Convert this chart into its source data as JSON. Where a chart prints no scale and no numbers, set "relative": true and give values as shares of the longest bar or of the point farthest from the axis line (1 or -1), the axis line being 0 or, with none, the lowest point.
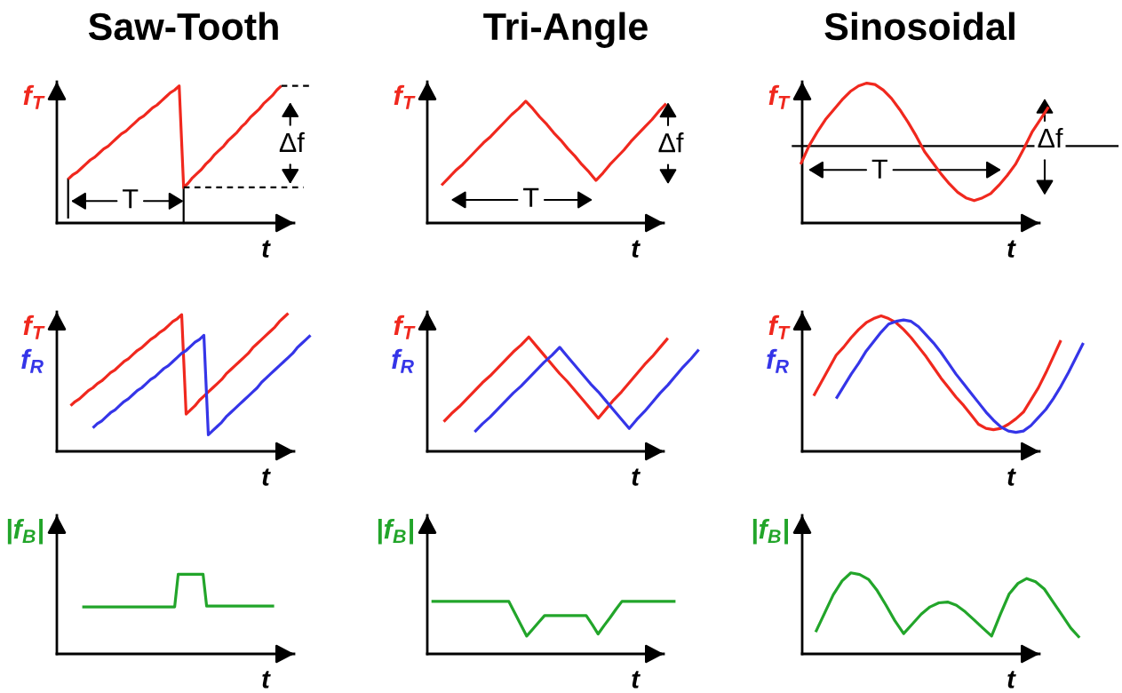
{
  "chart_data": [
    {
      "type": "line",
      "title": "Saw-Tooth",
      "xlabel": "t",
      "relative": true,
      "categories": [
        null,
        null,
        null,
        null,
        null,
        null,
        null,
        null,
        null,
        null,
        null,
        null,
        null,
        null,
        null,
        null,
        null,
        null,
        null,
        null,
        null,
        null,
        null,
        null,
        null,
        null,
        null,
        null,
        null,
        null,
        null,
        null,
        null,
        null,
        null,
        null,
        null,
        null,
        null,
        null,
        null,
        null,
        null,
        null,
        null,
        null,
        null,
        null,
        null,
        null,
        null,
        null,
        null,
        null,
        null,
        null
      ],
      "series": [
        {
          "name": "f$_{T}$",
          "color": "#f0281e",
          "values": [
            0.32,
            0.35,
            0.37,
            0.4,
            0.43,
            0.46,
            0.48,
            0.51,
            0.54,
            0.56,
            0.59,
            0.62,
            0.65,
            0.67,
            0.7,
            0.73,
            0.76,
            0.78,
            0.81,
            0.84,
            0.86,
            0.89,
            0.92,
            0.95,
            0.97,
            1.0,
            0.26,
            0.29,
            0.33,
            0.36,
            0.39,
            0.43,
            0.46,
            0.5,
            0.53,
            0.56,
            0.6,
            0.63,
            0.66,
            0.7,
            0.73,
            0.77,
            0.8,
            0.83,
            0.87,
            0.9,
            0.93,
            0.97,
            1.0,
            null,
            null,
            null,
            null,
            null,
            null,
            null
          ]
        },
        {
          "color": "#000000",
          "line_style": "dashed",
          "values": [
            null,
            null,
            null,
            null,
            null,
            null,
            null,
            null,
            null,
            null,
            null,
            null,
            null,
            null,
            null,
            null,
            null,
            null,
            null,
            null,
            null,
            null,
            null,
            null,
            null,
            null,
            null,
            null,
            null,
            null,
            null,
            null,
            null,
            null,
            null,
            null,
            null,
            null,
            null,
            null,
            null,
            null,
            null,
            null,
            null,
            null,
            null,
            null,
            1.0,
            1.0,
            1.0,
            1.0,
            1.0,
            1.0,
            1.0,
            1.0
          ]
        },
        {
          "color": "#000000",
          "line_style": "dashed",
          "values": [
            null,
            null,
            null,
            null,
            null,
            null,
            null,
            null,
            null,
            null,
            null,
            null,
            null,
            null,
            null,
            null,
            null,
            null,
            null,
            null,
            null,
            null,
            null,
            null,
            null,
            null,
            0.26,
            0.26,
            0.26,
            0.26,
            0.26,
            0.26,
            0.26,
            0.26,
            0.26,
            0.26,
            0.26,
            0.26,
            0.26,
            0.26,
            0.26,
            0.26,
            0.26,
            0.26,
            0.26,
            0.26,
            0.26,
            0.26,
            0.26,
            0.26,
            0.26,
            0.26,
            0.26,
            0.26,
            null,
            null
          ]
        }
      ],
      "annotations": [
        "T",
        "Δf"
      ]
    },
    {
      "type": "line",
      "title": "Tri-Angle",
      "xlabel": "t",
      "relative": true,
      "categories": [
        null,
        null,
        null,
        null,
        null,
        null,
        null,
        null,
        null,
        null,
        null,
        null,
        null,
        null,
        null,
        null,
        null,
        null,
        null,
        null,
        null,
        null,
        null,
        null,
        null,
        null,
        null,
        null,
        null,
        null,
        null,
        null,
        null
      ],
      "series": [
        {
          "name": "f$_{T}$",
          "color": "#f0281e",
          "values": [
            0.31,
            0.37,
            0.43,
            0.48,
            0.54,
            0.6,
            0.66,
            0.71,
            0.77,
            0.83,
            0.89,
            0.94,
            1.0,
            0.94,
            0.87,
            0.81,
            0.74,
            0.68,
            0.61,
            0.55,
            0.48,
            0.42,
            0.35,
            0.41,
            0.48,
            0.54,
            0.6,
            0.67,
            0.73,
            0.79,
            0.85,
            0.92,
            0.98
          ]
        }
      ],
      "annotations": [
        "T",
        "Δf"
      ]
    },
    {
      "type": "line",
      "title": "Sinosoidal",
      "xlabel": "t",
      "relative": true,
      "categories": [
        null,
        null,
        null,
        null,
        null,
        null,
        null,
        null,
        null,
        null,
        null,
        null,
        null,
        null,
        null,
        null,
        null,
        null,
        null,
        null,
        null,
        null,
        null,
        null,
        null,
        null,
        null,
        null,
        null,
        null,
        null
      ],
      "series": [
        {
          "name": "f$_{T}$",
          "color": "#f0281e",
          "values": [
            0.42,
            0.55,
            0.65,
            0.74,
            0.81,
            0.88,
            0.94,
            0.98,
            1.0,
            0.99,
            0.95,
            0.89,
            0.81,
            0.72,
            0.62,
            0.51,
            0.43,
            0.35,
            0.28,
            0.22,
            0.18,
            0.16,
            0.18,
            0.21,
            0.27,
            0.34,
            0.42,
            0.53,
            0.65,
            0.74,
            0.83
          ]
        }
      ],
      "ref_lines": [
        {
          "axis": "y",
          "value": 0.55,
          "color": "#000000"
        }
      ],
      "annotations": [
        "T",
        "Δf"
      ]
    },
    {
      "type": "line",
      "xlabel": "t",
      "relative": true,
      "categories": [
        null,
        null,
        null,
        null,
        null,
        null,
        null,
        null,
        null,
        null,
        null,
        null,
        null,
        null,
        null,
        null,
        null,
        null,
        null,
        null,
        null,
        null,
        null,
        null,
        null,
        null,
        null,
        null,
        null,
        null,
        null,
        null,
        null,
        null,
        null,
        null,
        null,
        null,
        null,
        null,
        null,
        null,
        null,
        null,
        null,
        null,
        null,
        null,
        null,
        null,
        null,
        null,
        null,
        null,
        null
      ],
      "series": [
        {
          "name": "f$_{T}$",
          "color": "#f0281e",
          "values": [
            0.33,
            0.36,
            0.38,
            0.41,
            0.44,
            0.46,
            0.49,
            0.51,
            0.54,
            0.57,
            0.59,
            0.62,
            0.65,
            0.67,
            0.7,
            0.73,
            0.75,
            0.78,
            0.81,
            0.83,
            0.86,
            0.88,
            0.91,
            0.94,
            0.96,
            0.99,
            0.27,
            0.3,
            0.33,
            0.37,
            0.4,
            0.43,
            0.46,
            0.49,
            0.52,
            0.56,
            0.59,
            0.62,
            0.65,
            0.68,
            0.71,
            0.75,
            0.78,
            0.81,
            0.84,
            0.87,
            0.9,
            0.94,
            0.97,
            1.0,
            null,
            null,
            null,
            null,
            null
          ]
        },
        {
          "name": "f$_{R}$",
          "color": "#3535e8",
          "values": [
            null,
            null,
            null,
            null,
            null,
            0.17,
            0.2,
            0.22,
            0.25,
            0.28,
            0.3,
            0.33,
            0.36,
            0.38,
            0.41,
            0.44,
            0.46,
            0.49,
            0.52,
            0.54,
            0.57,
            0.6,
            0.62,
            0.65,
            0.68,
            0.71,
            0.73,
            0.76,
            0.79,
            0.81,
            0.84,
            0.12,
            0.15,
            0.18,
            0.21,
            0.25,
            0.28,
            0.31,
            0.34,
            0.37,
            0.4,
            0.43,
            0.46,
            0.5,
            0.53,
            0.56,
            0.59,
            0.62,
            0.65,
            0.68,
            0.71,
            0.75,
            0.78,
            0.81,
            0.84
          ]
        }
      ]
    },
    {
      "type": "line",
      "xlabel": "t",
      "relative": true,
      "categories": [
        null,
        null,
        null,
        null,
        null,
        null,
        null,
        null,
        null,
        null,
        null,
        null,
        null,
        null,
        null,
        null,
        null,
        null,
        null,
        null,
        null,
        null,
        null,
        null,
        null,
        null,
        null,
        null,
        null,
        null,
        null,
        null,
        null,
        null
      ],
      "series": [
        {
          "name": "f$_{T}$",
          "color": "#f0281e",
          "values": [
            0.26,
            0.33,
            0.39,
            0.46,
            0.53,
            0.6,
            0.66,
            0.73,
            0.8,
            0.87,
            0.93,
            1.0,
            0.92,
            0.84,
            0.76,
            0.68,
            0.61,
            0.53,
            0.45,
            0.37,
            0.29,
            0.37,
            0.45,
            0.52,
            0.6,
            0.68,
            0.76,
            0.83,
            0.91,
            0.99,
            null,
            null,
            null,
            null
          ]
        },
        {
          "name": "f$_{R}$",
          "color": "#3535e8",
          "values": [
            null,
            null,
            null,
            null,
            0.17,
            0.24,
            0.3,
            0.37,
            0.44,
            0.51,
            0.57,
            0.64,
            0.71,
            0.78,
            0.84,
            0.91,
            0.83,
            0.75,
            0.67,
            0.59,
            0.52,
            0.44,
            0.36,
            0.28,
            0.2,
            0.28,
            0.35,
            0.43,
            0.51,
            0.58,
            0.66,
            0.74,
            0.81,
            0.89
          ]
        }
      ]
    },
    {
      "type": "line",
      "xlabel": "t",
      "relative": true,
      "categories": [
        null,
        null,
        null,
        null,
        null,
        null,
        null,
        null,
        null,
        null,
        null,
        null,
        null,
        null,
        null,
        null,
        null,
        null,
        null,
        null,
        null,
        null,
        null,
        null,
        null,
        null,
        null,
        null,
        null,
        null,
        null,
        null,
        null,
        null,
        null,
        null,
        null
      ],
      "series": [
        {
          "name": "f$_{T}$",
          "color": "#f0281e",
          "values": [
            0.41,
            0.51,
            0.61,
            0.71,
            0.77,
            0.84,
            0.9,
            0.95,
            0.98,
            1.0,
            0.98,
            0.95,
            0.9,
            0.84,
            0.77,
            0.7,
            0.62,
            0.54,
            0.47,
            0.4,
            0.34,
            0.27,
            0.2,
            0.17,
            0.16,
            0.17,
            0.2,
            0.24,
            0.29,
            0.38,
            0.47,
            0.58,
            0.7,
            0.82,
            null,
            null,
            null
          ]
        },
        {
          "name": "f$_{R}$",
          "color": "#3535e8",
          "values": [
            null,
            null,
            null,
            0.39,
            0.48,
            0.57,
            0.65,
            0.74,
            0.81,
            0.88,
            0.94,
            0.96,
            0.97,
            0.96,
            0.92,
            0.86,
            0.8,
            0.73,
            0.65,
            0.57,
            0.5,
            0.43,
            0.36,
            0.29,
            0.23,
            0.18,
            0.15,
            0.14,
            0.15,
            0.19,
            0.25,
            0.31,
            0.39,
            0.48,
            0.58,
            0.69,
            0.8
          ]
        }
      ]
    },
    {
      "type": "line",
      "xlabel": "t",
      "relative": true,
      "categories": [
        null,
        null,
        null,
        null,
        null,
        null,
        null,
        null,
        null,
        null,
        null,
        null,
        null,
        null,
        null,
        null,
        null,
        null,
        null,
        null,
        null,
        null,
        null,
        null,
        null,
        null,
        null,
        null,
        null,
        null,
        null,
        null,
        null,
        null,
        null,
        null,
        null,
        null,
        null,
        null,
        null,
        null,
        null,
        null,
        null,
        null,
        null,
        null,
        null,
        null,
        null,
        null,
        null,
        null,
        null
      ],
      "series": [
        {
          "name": "|f$_{B}$|",
          "color": "#22a52a",
          "values": [
            0.59,
            0.59,
            0.59,
            0.59,
            0.59,
            0.59,
            0.59,
            0.59,
            0.59,
            0.59,
            0.59,
            0.59,
            0.59,
            0.59,
            0.59,
            0.59,
            0.59,
            0.59,
            0.59,
            0.59,
            0.59,
            0.59,
            0.59,
            0.59,
            0.59,
            0.59,
            0.59,
            1.0,
            1.0,
            1.0,
            1.0,
            1.0,
            1.0,
            1.0,
            1.0,
            0.6,
            0.6,
            0.6,
            0.6,
            0.6,
            0.6,
            0.6,
            0.6,
            0.6,
            0.6,
            0.6,
            0.6,
            0.6,
            0.6,
            0.6,
            0.6,
            0.6,
            0.6,
            0.6,
            0.6
          ]
        }
      ]
    },
    {
      "type": "line",
      "xlabel": "t",
      "relative": true,
      "categories": [
        null,
        null,
        null,
        null,
        null,
        null,
        null,
        null,
        null,
        null,
        null,
        null,
        null,
        null,
        null,
        null,
        null,
        null,
        null,
        null,
        null,
        null,
        null,
        null,
        null,
        null,
        null,
        null,
        null,
        null,
        null,
        null,
        null,
        null,
        null,
        null,
        null,
        null,
        null,
        null,
        null,
        null
      ],
      "series": [
        {
          "name": "|f$_{B}$|",
          "color": "#22a52a",
          "values": [
            1.0,
            1.0,
            1.0,
            1.0,
            1.0,
            1.0,
            1.0,
            1.0,
            1.0,
            1.0,
            1.0,
            1.0,
            1.0,
            1.0,
            0.78,
            0.56,
            0.34,
            0.47,
            0.6,
            0.73,
            0.73,
            0.73,
            0.73,
            0.73,
            0.73,
            0.73,
            0.73,
            0.56,
            0.38,
            0.54,
            0.69,
            0.85,
            1.0,
            1.0,
            1.0,
            1.0,
            1.0,
            1.0,
            1.0,
            1.0,
            1.0,
            1.0
          ]
        }
      ]
    },
    {
      "type": "line",
      "xlabel": "t",
      "relative": true,
      "categories": [
        null,
        null,
        null,
        null,
        null,
        null,
        null,
        null,
        null,
        null,
        null,
        null,
        null,
        null,
        null,
        null,
        null,
        null,
        null,
        null,
        null,
        null,
        null,
        null,
        null,
        null,
        null,
        null,
        null,
        null,
        null
      ],
      "series": [
        {
          "name": "|f$_{B}$|",
          "color": "#22a52a",
          "values": [
            0.27,
            0.5,
            0.73,
            0.9,
            1.0,
            0.98,
            0.92,
            0.78,
            0.6,
            0.41,
            0.25,
            0.37,
            0.49,
            0.58,
            0.63,
            0.64,
            0.6,
            0.52,
            0.42,
            0.32,
            0.22,
            0.49,
            0.74,
            0.87,
            0.93,
            0.89,
            0.8,
            0.64,
            0.48,
            0.32,
            0.2
          ]
        }
      ]
    }
  ]
}
